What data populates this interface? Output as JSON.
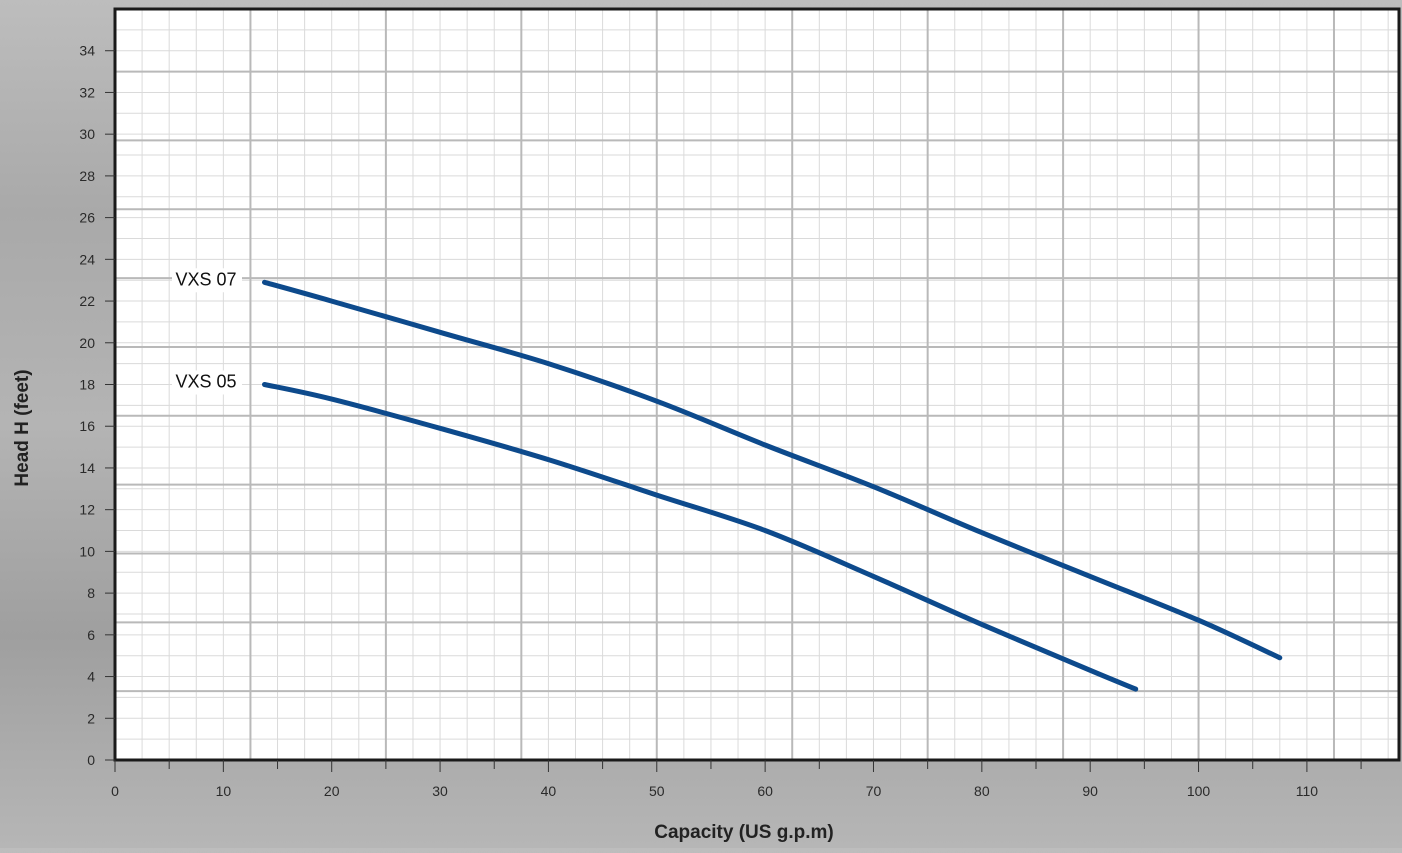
{
  "chart_data": {
    "type": "line",
    "title": "",
    "xlabel": "Capacity (US g.p.m)",
    "ylabel": "Head H (feet)",
    "xlim": [
      0,
      118.5
    ],
    "ylim": [
      0,
      36
    ],
    "x_ticks": [
      0,
      10,
      20,
      30,
      40,
      50,
      60,
      70,
      80,
      90,
      100,
      110
    ],
    "y_ticks": [
      0,
      2,
      4,
      6,
      8,
      10,
      12,
      14,
      16,
      18,
      20,
      22,
      24,
      26,
      28,
      30,
      32,
      34
    ],
    "grid": true,
    "legend": "inline labels at left of curves",
    "series_color": "#0d4a8c",
    "series": [
      {
        "name": "VXS 07",
        "x": [
          13.8,
          20,
          30,
          40,
          50,
          60,
          70,
          80,
          90,
          100,
          107.5
        ],
        "y": [
          22.9,
          22.0,
          20.5,
          19.0,
          17.2,
          15.1,
          13.1,
          10.9,
          8.8,
          6.7,
          4.9
        ]
      },
      {
        "name": "VXS 05",
        "x": [
          13.8,
          20,
          30,
          40,
          50,
          60,
          70,
          80,
          90,
          94.2
        ],
        "y": [
          18.0,
          17.3,
          15.9,
          14.4,
          12.7,
          11.0,
          8.8,
          6.5,
          4.3,
          3.4
        ]
      }
    ]
  }
}
